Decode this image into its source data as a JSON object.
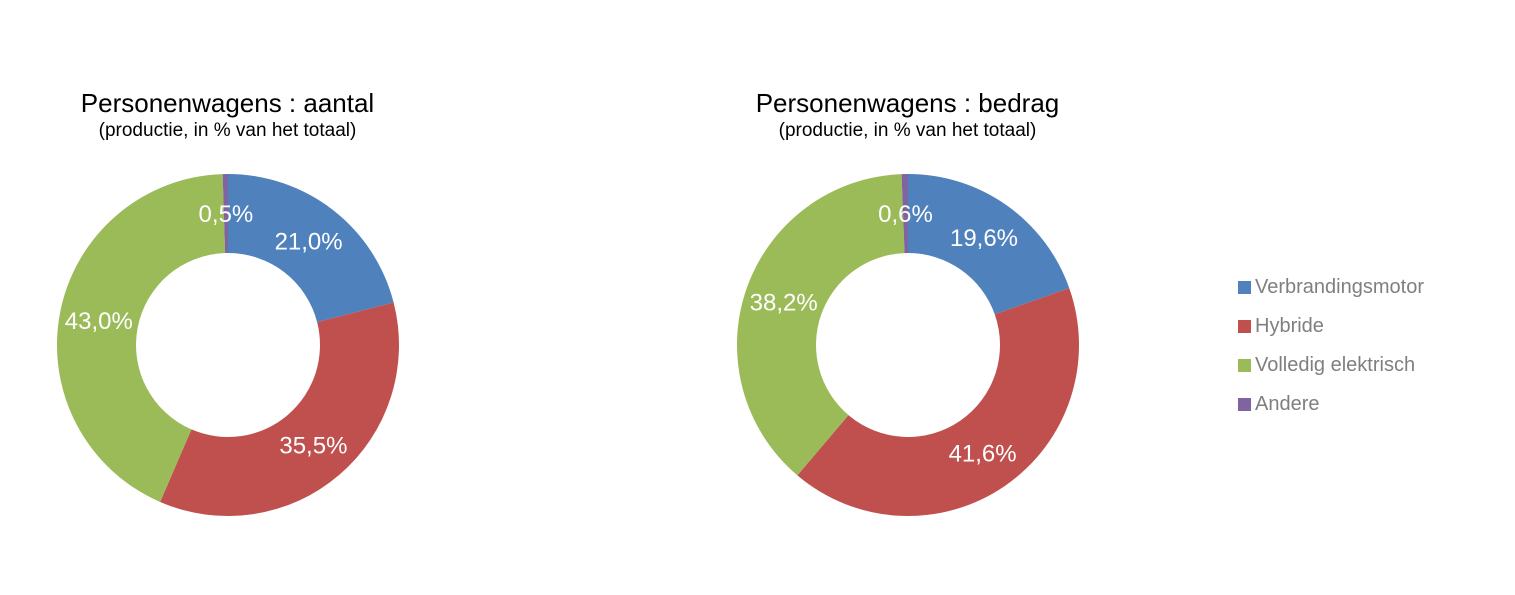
{
  "chart_data": [
    {
      "type": "pie",
      "subtype": "donut",
      "title": "Personenwagens : aantal",
      "subtitle": "(productie, in % van het totaal)",
      "categories": [
        "Verbrandingsmotor",
        "Hybride",
        "Volledig elektrisch",
        "Andere"
      ],
      "values": [
        21.0,
        35.5,
        43.0,
        0.5
      ],
      "value_labels": [
        "21,0%",
        "35,5%",
        "43,0%",
        "0,5%"
      ],
      "colors": [
        "#4F81BD",
        "#C0504D",
        "#9BBB59",
        "#8064A2"
      ],
      "start_angle": 0,
      "direction": "clockwise",
      "donut_hole_ratio": 0.54,
      "label_color": "#FFFFFF"
    },
    {
      "type": "pie",
      "subtype": "donut",
      "title": "Personenwagens : bedrag",
      "subtitle": "(productie, in % van het totaal)",
      "categories": [
        "Verbrandingsmotor",
        "Hybride",
        "Volledig elektrisch",
        "Andere"
      ],
      "values": [
        19.6,
        41.6,
        38.2,
        0.6
      ],
      "value_labels": [
        "19,6%",
        "41,6%",
        "38,2%",
        "0,6%"
      ],
      "colors": [
        "#4F81BD",
        "#C0504D",
        "#9BBB59",
        "#8064A2"
      ],
      "start_angle": 0,
      "direction": "clockwise",
      "donut_hole_ratio": 0.54,
      "label_color": "#FFFFFF"
    }
  ],
  "legend": {
    "position": "right",
    "text_color": "#7F7F7F",
    "items": [
      {
        "label": "Verbrandingsmotor",
        "color": "#4F81BD"
      },
      {
        "label": "Hybride",
        "color": "#C0504D"
      },
      {
        "label": "Volledig elektrisch",
        "color": "#9BBB59"
      },
      {
        "label": "Andere",
        "color": "#8064A2"
      }
    ]
  }
}
